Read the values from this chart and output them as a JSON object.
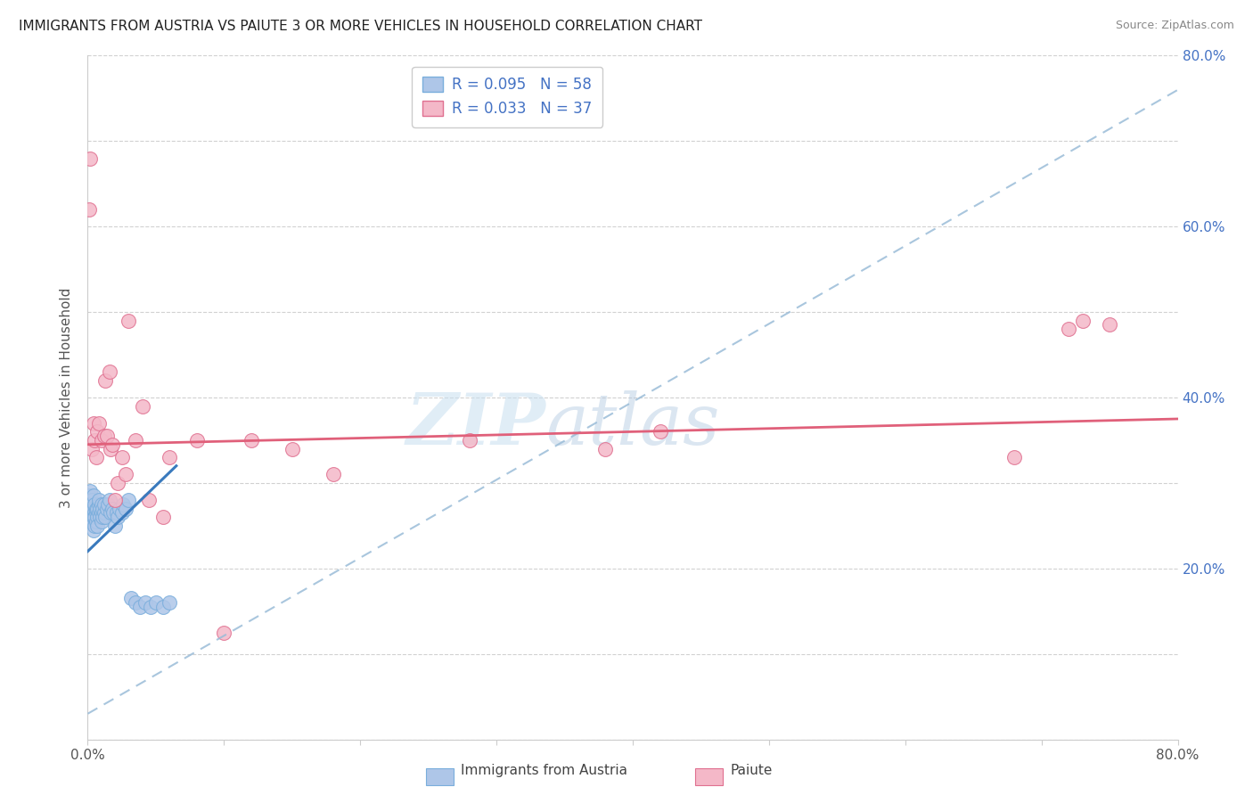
{
  "title": "IMMIGRANTS FROM AUSTRIA VS PAIUTE 3 OR MORE VEHICLES IN HOUSEHOLD CORRELATION CHART",
  "source": "Source: ZipAtlas.com",
  "ylabel": "3 or more Vehicles in Household",
  "watermark_zip": "ZIP",
  "watermark_atlas": "atlas",
  "xmin": 0.0,
  "xmax": 0.8,
  "ymin": 0.0,
  "ymax": 0.8,
  "series1_color": "#aec6e8",
  "series1_edge_color": "#7aaedc",
  "series2_color": "#f4b8c8",
  "series2_edge_color": "#e07090",
  "trendline1_dashed_color": "#9abcd8",
  "trendline1_solid_color": "#3a7abd",
  "trendline2_color": "#e0607a",
  "R1": 0.095,
  "N1": 58,
  "R2": 0.033,
  "N2": 37,
  "legend_label1": "Immigrants from Austria",
  "legend_label2": "Paiute",
  "legend_text_color": "#4472c4",
  "right_axis_color": "#4472c4",
  "austria_x": [
    0.001,
    0.001,
    0.002,
    0.002,
    0.002,
    0.003,
    0.003,
    0.003,
    0.003,
    0.004,
    0.004,
    0.004,
    0.004,
    0.005,
    0.005,
    0.005,
    0.005,
    0.006,
    0.006,
    0.006,
    0.007,
    0.007,
    0.007,
    0.008,
    0.008,
    0.008,
    0.009,
    0.009,
    0.01,
    0.01,
    0.01,
    0.011,
    0.011,
    0.012,
    0.012,
    0.013,
    0.014,
    0.015,
    0.016,
    0.017,
    0.018,
    0.019,
    0.02,
    0.021,
    0.022,
    0.023,
    0.025,
    0.026,
    0.028,
    0.03,
    0.032,
    0.035,
    0.038,
    0.042,
    0.046,
    0.05,
    0.055,
    0.06
  ],
  "austria_y": [
    0.27,
    0.285,
    0.26,
    0.275,
    0.29,
    0.255,
    0.27,
    0.28,
    0.265,
    0.26,
    0.245,
    0.27,
    0.285,
    0.25,
    0.265,
    0.275,
    0.26,
    0.255,
    0.265,
    0.27,
    0.26,
    0.27,
    0.25,
    0.265,
    0.275,
    0.28,
    0.26,
    0.27,
    0.255,
    0.265,
    0.275,
    0.26,
    0.27,
    0.265,
    0.275,
    0.26,
    0.27,
    0.275,
    0.28,
    0.265,
    0.27,
    0.265,
    0.25,
    0.265,
    0.26,
    0.27,
    0.265,
    0.275,
    0.27,
    0.28,
    0.165,
    0.16,
    0.155,
    0.16,
    0.155,
    0.16,
    0.155,
    0.16
  ],
  "paiute_x": [
    0.001,
    0.002,
    0.003,
    0.004,
    0.005,
    0.006,
    0.007,
    0.008,
    0.01,
    0.012,
    0.013,
    0.014,
    0.016,
    0.017,
    0.018,
    0.02,
    0.022,
    0.025,
    0.028,
    0.03,
    0.035,
    0.04,
    0.045,
    0.055,
    0.06,
    0.08,
    0.1,
    0.12,
    0.15,
    0.18,
    0.28,
    0.38,
    0.42,
    0.68,
    0.72,
    0.73,
    0.75
  ],
  "paiute_y": [
    0.62,
    0.68,
    0.34,
    0.37,
    0.35,
    0.33,
    0.36,
    0.37,
    0.35,
    0.355,
    0.42,
    0.355,
    0.43,
    0.34,
    0.345,
    0.28,
    0.3,
    0.33,
    0.31,
    0.49,
    0.35,
    0.39,
    0.28,
    0.26,
    0.33,
    0.35,
    0.125,
    0.35,
    0.34,
    0.31,
    0.35,
    0.34,
    0.36,
    0.33,
    0.48,
    0.49,
    0.485
  ]
}
